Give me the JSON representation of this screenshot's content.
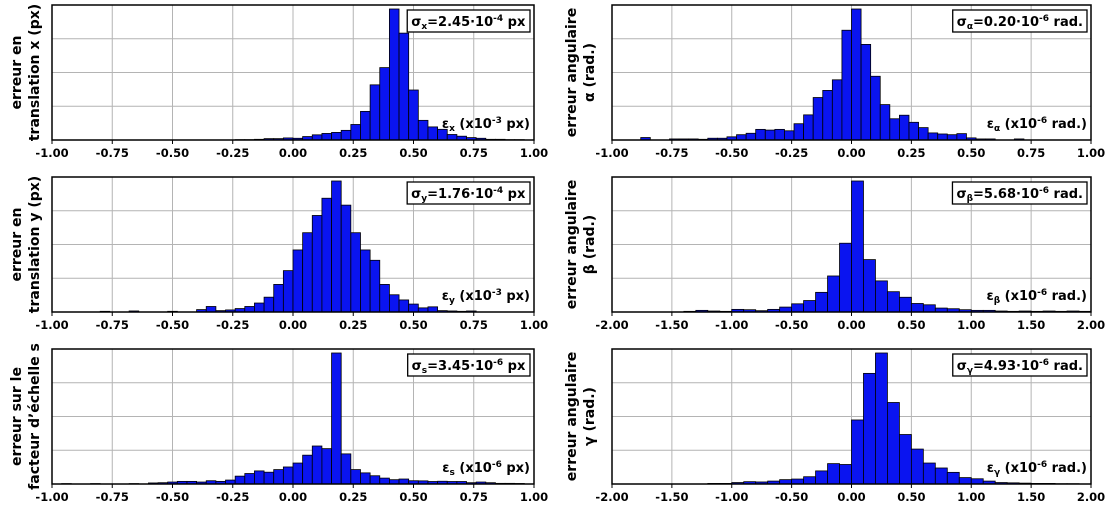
{
  "chart_data": [
    {
      "type": "bar",
      "ylabel_lines": [
        "erreur en",
        "translation x (px)"
      ],
      "sigma_label": "σ",
      "sigma_sub": "x",
      "sigma_value": "=2.45·10",
      "sigma_exp": "-4",
      "sigma_unit": "px",
      "eps_symbol": "ε",
      "eps_sub": "x",
      "eps_unit_pre": "(x10",
      "eps_unit_exp": "-3",
      "eps_unit_post": "px)",
      "xlim": [
        -1.0,
        1.0
      ],
      "xticks": [
        "-1.00",
        "-0.75",
        "-0.50",
        "-0.25",
        "0.00",
        "0.25",
        "0.50",
        "0.75",
        "1.00"
      ],
      "bin_width": 0.04,
      "bin_start": -1.0,
      "values": [
        0,
        0,
        0,
        0,
        0,
        0,
        0,
        0,
        0,
        0,
        0,
        0,
        0,
        0,
        0,
        0,
        0,
        0,
        0,
        0.1,
        0.1,
        0.2,
        0.4,
        0.4,
        0.6,
        0.5,
        1,
        1.5,
        1.9,
        2.2,
        2.8,
        4.5,
        8.3,
        16,
        21,
        38,
        31,
        14.5,
        5.7,
        3.8,
        3.1,
        1.6,
        1.1,
        0.7,
        0.5,
        0.2,
        0.2,
        0.1,
        0.1,
        0
      ]
    },
    {
      "type": "bar",
      "ylabel_lines": [
        "erreur angulaire",
        "α (rad.)"
      ],
      "sigma_label": "σ",
      "sigma_sub": "α",
      "sigma_value": "=0.20·10",
      "sigma_exp": "-6",
      "sigma_unit": "rad.",
      "eps_symbol": "ε",
      "eps_sub": "α",
      "eps_unit_pre": "(x10",
      "eps_unit_exp": "-6",
      "eps_unit_post": "rad.)",
      "xlim": [
        -1.0,
        1.0
      ],
      "xticks": [
        "-1.00",
        "-0.75",
        "-0.50",
        "-0.25",
        "0.00",
        "0.25",
        "0.50",
        "0.75",
        "1.00"
      ],
      "bin_width": 0.04,
      "bin_start": -1.0,
      "values": [
        0,
        0,
        0,
        0.7,
        0,
        0,
        0.3,
        0.3,
        0.3,
        0.2,
        0.5,
        0.5,
        0.9,
        1.5,
        1.9,
        3,
        2.8,
        3,
        2.6,
        4.6,
        7.1,
        12,
        14,
        17,
        31,
        37,
        27,
        18,
        10,
        6,
        7,
        5,
        3.5,
        2,
        1.7,
        1.5,
        1.8,
        0.6,
        0.3,
        0.3,
        0,
        0,
        0.3,
        0,
        0,
        0,
        0,
        0,
        0,
        0
      ]
    },
    {
      "type": "bar",
      "ylabel_lines": [
        "erreur en",
        "translation y (px)"
      ],
      "sigma_label": "σ",
      "sigma_sub": "y",
      "sigma_value": "=1.76·10",
      "sigma_exp": "-4",
      "sigma_unit": "px",
      "eps_symbol": "ε",
      "eps_sub": "y",
      "eps_unit_pre": "(x10",
      "eps_unit_exp": "-3",
      "eps_unit_post": "px)",
      "xlim": [
        -1.0,
        1.0
      ],
      "xticks": [
        "-1.00",
        "-0.75",
        "-0.50",
        "-0.25",
        "0.00",
        "0.25",
        "0.50",
        "0.75",
        "1.00"
      ],
      "bin_width": 0.04,
      "bin_start": -1.0,
      "values": [
        0,
        0,
        0,
        0,
        0,
        0.2,
        0,
        0,
        0.3,
        0,
        0,
        0,
        0.2,
        0,
        0,
        0.7,
        1.6,
        0.4,
        0.6,
        1,
        1.6,
        2.6,
        4.3,
        8,
        12,
        18,
        23,
        28,
        33,
        38,
        31,
        23,
        18,
        15,
        8,
        5,
        3.5,
        2.3,
        1.2,
        1.5,
        0.4,
        0.3,
        0.2,
        0.3,
        0,
        0,
        0,
        0,
        0,
        0
      ]
    },
    {
      "type": "bar",
      "ylabel_lines": [
        "erreur angulaire",
        "β (rad.)"
      ],
      "sigma_label": "σ",
      "sigma_sub": "β",
      "sigma_value": "=5.68·10",
      "sigma_exp": "-6",
      "sigma_unit": "rad.",
      "eps_symbol": "ε",
      "eps_sub": "β",
      "eps_unit_pre": "(x10",
      "eps_unit_exp": "-6",
      "eps_unit_post": "rad.)",
      "xlim": [
        -2.0,
        2.0
      ],
      "xticks": [
        "-2.00",
        "-1.50",
        "-1.00",
        "-0.50",
        "0.00",
        "0.50",
        "1.00",
        "1.50",
        "2.00"
      ],
      "bin_width": 0.1,
      "bin_start": -2.0,
      "values": [
        0,
        0,
        0,
        0,
        0,
        0,
        0.2,
        0.5,
        0.3,
        0.2,
        0.8,
        0.7,
        0.4,
        0.8,
        1.5,
        2.5,
        3.5,
        6,
        11,
        21,
        40,
        16,
        9.5,
        6.2,
        4.5,
        2.6,
        2.2,
        1.2,
        1.0,
        0.7,
        0.5,
        0.5,
        0.3,
        0.2,
        0.3,
        0.2,
        0.3,
        0.2,
        0.3,
        0.2
      ]
    },
    {
      "type": "bar",
      "ylabel_lines": [
        "erreur sur le",
        "facteur d’échelle s"
      ],
      "sigma_label": "σ",
      "sigma_sub": "s",
      "sigma_value": "=3.45·10",
      "sigma_exp": "-6",
      "sigma_unit": "px",
      "eps_symbol": "ε",
      "eps_sub": "s",
      "eps_unit_pre": "(x10",
      "eps_unit_exp": "-6",
      "eps_unit_post": "px)",
      "xlim": [
        -1.0,
        1.0
      ],
      "xticks": [
        "-1.00",
        "-0.75",
        "-0.50",
        "-0.25",
        "0.00",
        "0.25",
        "0.50",
        "0.75",
        "1.00"
      ],
      "bin_width": 0.04,
      "bin_start": -1.0,
      "values": [
        0,
        0.3,
        0,
        0,
        0.3,
        0,
        0,
        0,
        0.3,
        0,
        0.8,
        1,
        1.5,
        2,
        2,
        1.5,
        2.5,
        2,
        3,
        6,
        8,
        10,
        9,
        11,
        13,
        16,
        22,
        29,
        27,
        100,
        23,
        11,
        8.5,
        6.3,
        4.5,
        3.3,
        3.8,
        2.5,
        2.4,
        1.9,
        2.1,
        1.9,
        1.9,
        1,
        1.5,
        1,
        0.5,
        0.5,
        0.4,
        0
      ]
    },
    {
      "type": "bar",
      "ylabel_lines": [
        "erreur angulaire",
        "γ (rad.)"
      ],
      "sigma_label": "σ",
      "sigma_sub": "γ",
      "sigma_value": "=4.93·10",
      "sigma_exp": "-6",
      "sigma_unit": "rad.",
      "eps_symbol": "ε",
      "eps_sub": "γ",
      "eps_unit_pre": "(x10",
      "eps_unit_exp": "-6",
      "eps_unit_post": "rad.)",
      "xlim": [
        -2.0,
        2.0
      ],
      "xticks": [
        "-2.00",
        "-1.50",
        "-1.00",
        "-0.50",
        "0.00",
        "0.50",
        "1.00",
        "1.50",
        "2.00"
      ],
      "bin_width": 0.1,
      "bin_start": -2.0,
      "values": [
        0,
        0,
        0,
        0,
        0,
        0,
        0,
        0,
        0.2,
        0.2,
        0.5,
        0.8,
        0.7,
        1,
        1.5,
        1.7,
        2.5,
        4.5,
        7,
        6.7,
        22,
        38,
        45,
        28,
        17,
        12,
        7.2,
        5.5,
        4,
        2.2,
        1.8,
        1,
        0.5,
        0.4,
        0.3,
        0.2,
        0.2,
        0.1,
        0.1,
        0
      ]
    }
  ]
}
